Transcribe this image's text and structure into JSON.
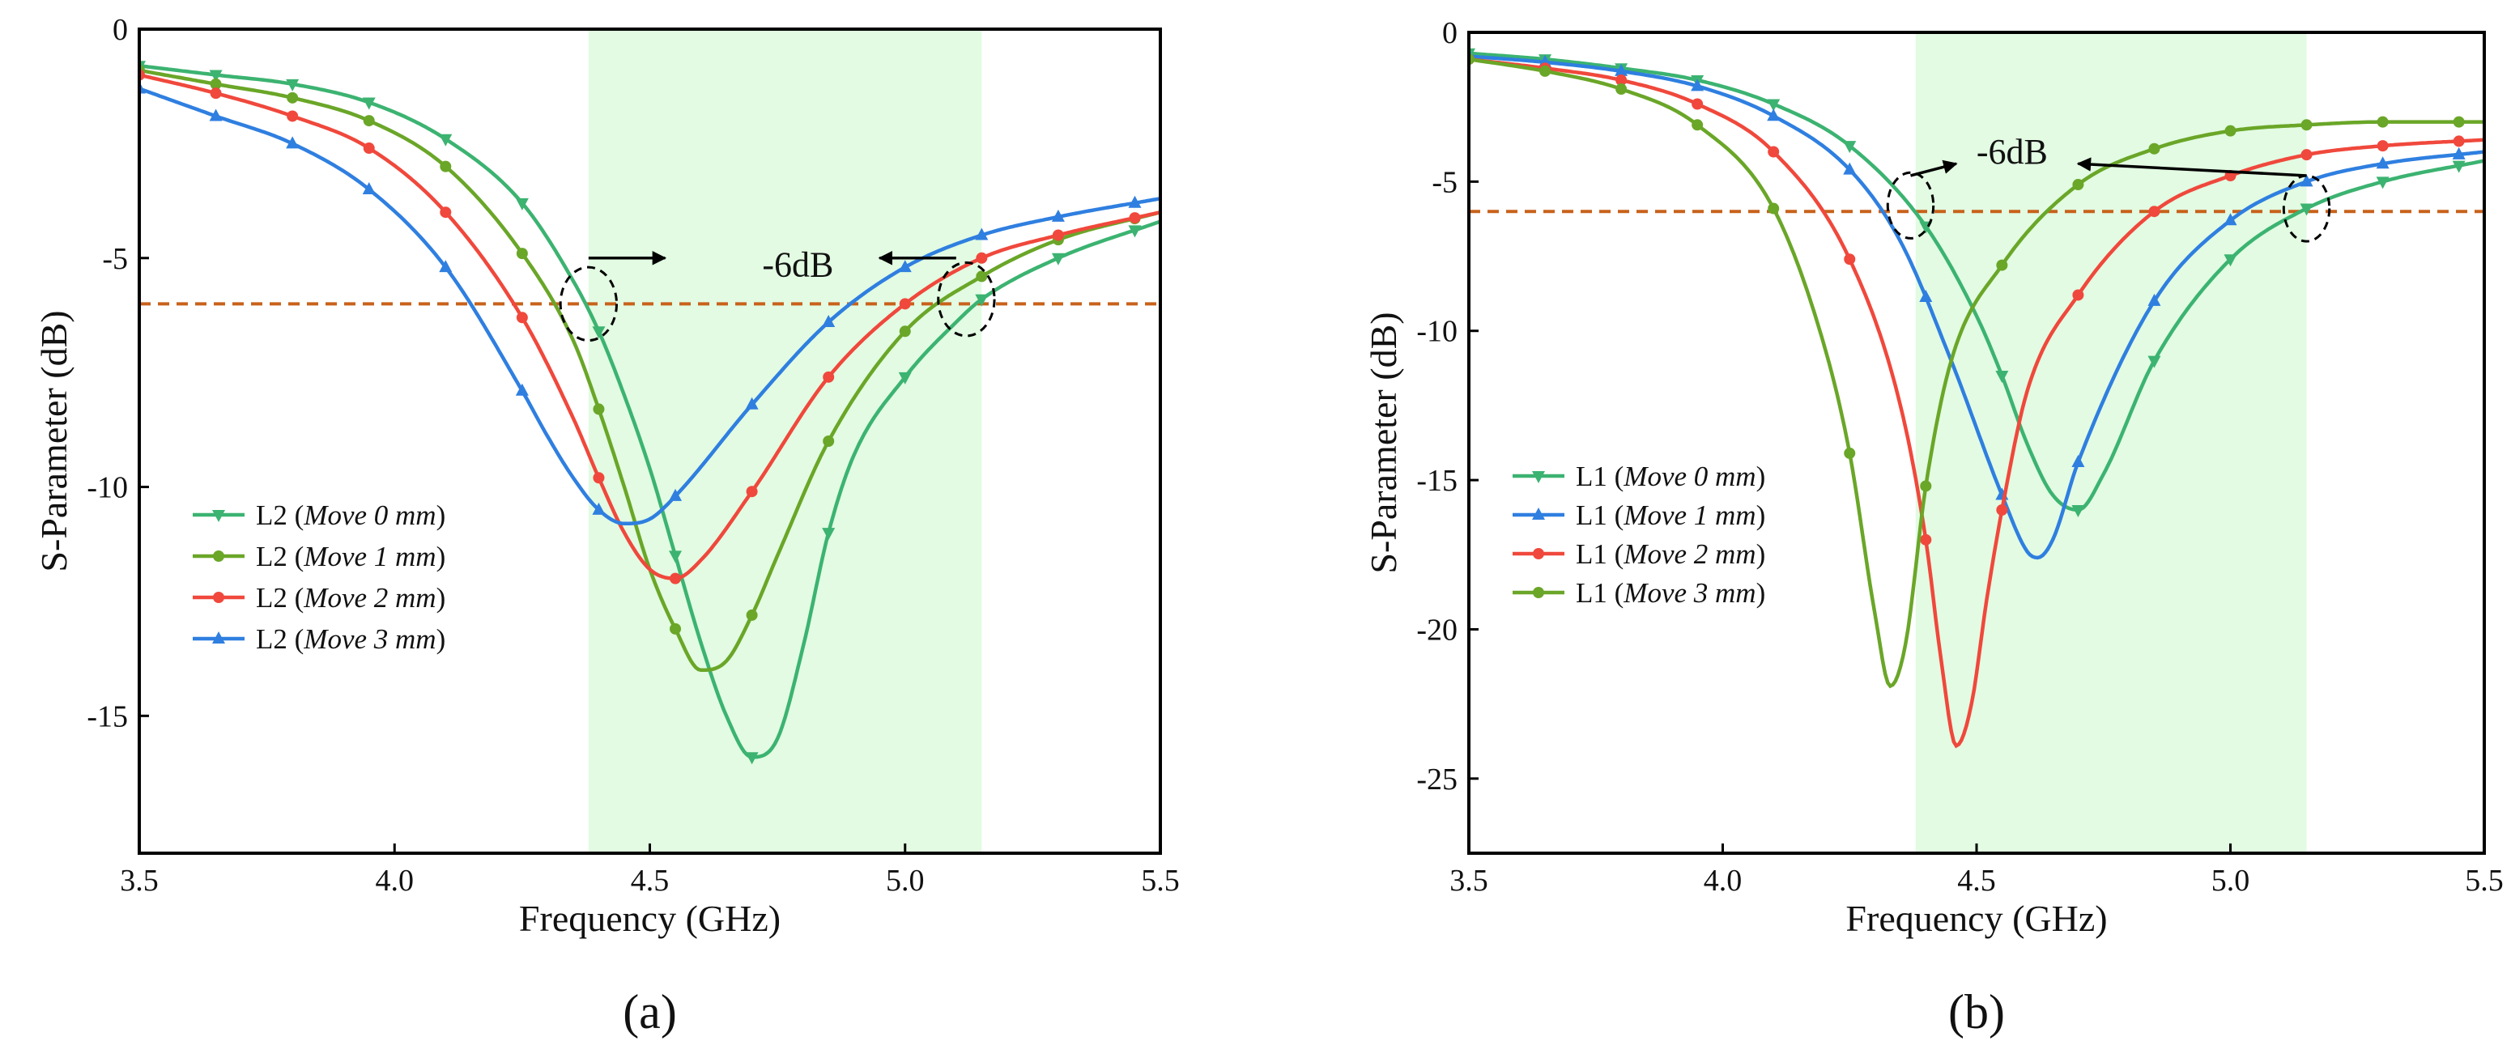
{
  "figure": {
    "panels": [
      "(a)",
      "(b)"
    ]
  },
  "colors": {
    "move0": "#3CB371",
    "move1": "#6AA628",
    "move2": "#F0483C",
    "move3": "#2F7FE0",
    "threshold": "#C8621B",
    "band": "#E2FBE2"
  },
  "chart_data": [
    {
      "id": "a",
      "panel_label": "(a)",
      "type": "line",
      "xlabel": "Frequency (GHz)",
      "ylabel": "S-Parameter (dB)",
      "xlim": [
        3.5,
        5.5
      ],
      "ylim": [
        -18,
        0
      ],
      "xticks": [
        3.5,
        4.0,
        4.5,
        5.0,
        5.5
      ],
      "xtick_labels": [
        "3.5",
        "4.0",
        "4.5",
        "5.0",
        "5.5"
      ],
      "yticks": [
        0,
        -5,
        -10,
        -15
      ],
      "ytick_labels": [
        "0",
        "-5",
        "-10",
        "-15"
      ],
      "shaded_band": [
        4.38,
        5.15
      ],
      "threshold": -6,
      "threshold_label": "-6dB",
      "legend_position": "center-left",
      "series": [
        {
          "name": "L2",
          "detail": "Move 0 mm",
          "color_key": "move0",
          "marker": "down-triangle",
          "x": [
            3.5,
            3.65,
            3.8,
            3.95,
            4.1,
            4.25,
            4.35,
            4.4,
            4.45,
            4.5,
            4.55,
            4.6,
            4.65,
            4.7,
            4.75,
            4.8,
            4.85,
            4.9,
            5.0,
            5.1,
            5.15,
            5.3,
            5.5
          ],
          "y": [
            -0.8,
            -1.0,
            -1.2,
            -1.6,
            -2.4,
            -3.8,
            -5.5,
            -6.6,
            -8.0,
            -9.6,
            -11.5,
            -13.4,
            -15.0,
            -15.9,
            -15.5,
            -13.5,
            -11.0,
            -9.3,
            -7.6,
            -6.4,
            -5.9,
            -5.0,
            -4.2
          ],
          "marker_x": [
            3.5,
            3.65,
            3.8,
            3.95,
            4.1,
            4.25,
            4.4,
            4.55,
            4.7,
            4.85,
            5.0,
            5.15,
            5.3,
            5.45
          ]
        },
        {
          "name": "L2",
          "detail": "Move 1 mm",
          "color_key": "move1",
          "marker": "circle",
          "x": [
            3.5,
            3.65,
            3.8,
            3.95,
            4.1,
            4.25,
            4.35,
            4.4,
            4.45,
            4.5,
            4.55,
            4.6,
            4.65,
            4.7,
            4.75,
            4.85,
            5.0,
            5.15,
            5.3,
            5.5
          ],
          "y": [
            -0.9,
            -1.2,
            -1.5,
            -2.0,
            -3.0,
            -4.9,
            -6.8,
            -8.3,
            -10.0,
            -11.8,
            -13.1,
            -14.0,
            -13.8,
            -12.8,
            -11.5,
            -9.0,
            -6.6,
            -5.4,
            -4.6,
            -4.0
          ],
          "marker_x": [
            3.5,
            3.65,
            3.8,
            3.95,
            4.1,
            4.25,
            4.4,
            4.55,
            4.7,
            4.85,
            5.0,
            5.15,
            5.3,
            5.45
          ]
        },
        {
          "name": "L2",
          "detail": "Move 2 mm",
          "color_key": "move2",
          "marker": "circle",
          "x": [
            3.5,
            3.65,
            3.8,
            3.95,
            4.1,
            4.25,
            4.35,
            4.4,
            4.45,
            4.5,
            4.55,
            4.6,
            4.7,
            4.85,
            5.0,
            5.15,
            5.3,
            5.5
          ],
          "y": [
            -1.0,
            -1.4,
            -1.9,
            -2.6,
            -4.0,
            -6.3,
            -8.5,
            -9.8,
            -11.0,
            -11.8,
            -12.0,
            -11.6,
            -10.1,
            -7.6,
            -6.0,
            -5.0,
            -4.5,
            -4.0
          ],
          "marker_x": [
            3.5,
            3.65,
            3.8,
            3.95,
            4.1,
            4.25,
            4.4,
            4.55,
            4.7,
            4.85,
            5.0,
            5.15,
            5.3,
            5.45
          ]
        },
        {
          "name": "L2",
          "detail": "Move 3 mm",
          "color_key": "move3",
          "marker": "up-triangle",
          "x": [
            3.5,
            3.65,
            3.8,
            3.95,
            4.1,
            4.25,
            4.3,
            4.35,
            4.4,
            4.45,
            4.5,
            4.55,
            4.7,
            4.85,
            5.0,
            5.15,
            5.3,
            5.5
          ],
          "y": [
            -1.3,
            -1.9,
            -2.5,
            -3.5,
            -5.2,
            -7.9,
            -8.9,
            -9.8,
            -10.5,
            -10.8,
            -10.7,
            -10.2,
            -8.2,
            -6.4,
            -5.2,
            -4.5,
            -4.1,
            -3.7
          ],
          "marker_x": [
            3.5,
            3.65,
            3.8,
            3.95,
            4.1,
            4.25,
            4.4,
            4.55,
            4.7,
            4.85,
            5.0,
            5.15,
            5.3,
            5.45
          ]
        }
      ],
      "annotations": [
        {
          "type": "ellipse",
          "cx": 4.38,
          "cy": -6.0,
          "rx": 0.055,
          "ry": 0.8
        },
        {
          "type": "ellipse",
          "cx": 5.12,
          "cy": -5.9,
          "rx": 0.055,
          "ry": 0.8
        },
        {
          "type": "arrow",
          "x1": 4.38,
          "y1": -5.0,
          "x2": 4.53,
          "y2": -5.0
        },
        {
          "type": "arrow",
          "x1": 5.1,
          "y1": -5.0,
          "x2": 4.95,
          "y2": -5.0
        },
        {
          "type": "label",
          "x": 4.79,
          "y": -5.4
        }
      ]
    },
    {
      "id": "b",
      "panel_label": "(b)",
      "type": "line",
      "xlabel": "Frequency (GHz)",
      "ylabel": "S-Parameter (dB)",
      "xlim": [
        3.5,
        5.5
      ],
      "ylim": [
        -27.5,
        0
      ],
      "xticks": [
        3.5,
        4.0,
        4.5,
        5.0,
        5.5
      ],
      "xtick_labels": [
        "3.5",
        "4.0",
        "4.5",
        "5.0",
        "5.5"
      ],
      "yticks": [
        0,
        -5,
        -10,
        -15,
        -20,
        -25
      ],
      "ytick_labels": [
        "0",
        "-5",
        "-10",
        "-15",
        "-20",
        "-25"
      ],
      "shaded_band": [
        4.38,
        5.15
      ],
      "threshold": -6,
      "threshold_label": "-6dB",
      "legend_position": "center-left",
      "series": [
        {
          "name": "L1",
          "detail": "Move 0 mm",
          "color_key": "move0",
          "marker": "down-triangle",
          "x": [
            3.5,
            3.65,
            3.8,
            3.95,
            4.1,
            4.25,
            4.4,
            4.5,
            4.55,
            4.6,
            4.65,
            4.7,
            4.75,
            4.85,
            5.0,
            5.15,
            5.3,
            5.5
          ],
          "y": [
            -0.7,
            -0.9,
            -1.2,
            -1.6,
            -2.4,
            -3.8,
            -6.5,
            -9.5,
            -11.5,
            -13.8,
            -15.5,
            -16.0,
            -14.8,
            -11.0,
            -7.6,
            -5.9,
            -5.0,
            -4.3
          ],
          "marker_x": [
            3.5,
            3.65,
            3.8,
            3.95,
            4.1,
            4.25,
            4.4,
            4.55,
            4.7,
            4.85,
            5.0,
            5.15,
            5.3,
            5.45
          ]
        },
        {
          "name": "L1",
          "detail": "Move 1 mm",
          "color_key": "move1",
          "marker": "up-triangle",
          "color_override": "move3",
          "x": [
            3.5,
            3.65,
            3.8,
            3.95,
            4.1,
            4.25,
            4.35,
            4.45,
            4.55,
            4.6,
            4.62,
            4.65,
            4.7,
            4.85,
            5.0,
            5.15,
            5.3,
            5.5
          ],
          "y": [
            -0.8,
            -1.0,
            -1.3,
            -1.8,
            -2.8,
            -4.6,
            -7.0,
            -11.0,
            -15.5,
            -17.4,
            -17.6,
            -17.0,
            -14.4,
            -9.0,
            -6.3,
            -5.0,
            -4.4,
            -4.0
          ],
          "marker_x": [
            3.5,
            3.65,
            3.8,
            3.95,
            4.1,
            4.25,
            4.4,
            4.55,
            4.7,
            4.85,
            5.0,
            5.15,
            5.3,
            5.45
          ]
        },
        {
          "name": "L1",
          "detail": "Move 2 mm",
          "color_key": "move2",
          "marker": "circle",
          "x": [
            3.5,
            3.65,
            3.8,
            3.95,
            4.1,
            4.25,
            4.35,
            4.4,
            4.43,
            4.46,
            4.49,
            4.52,
            4.55,
            4.6,
            4.7,
            4.85,
            5.0,
            5.15,
            5.3,
            5.5
          ],
          "y": [
            -0.9,
            -1.2,
            -1.6,
            -2.4,
            -4.0,
            -7.6,
            -12.5,
            -17.0,
            -21.0,
            -23.9,
            -22.5,
            -19.0,
            -16.0,
            -12.0,
            -8.8,
            -6.0,
            -4.8,
            -4.1,
            -3.8,
            -3.6
          ],
          "marker_x": [
            3.5,
            3.65,
            3.8,
            3.95,
            4.1,
            4.25,
            4.4,
            4.55,
            4.7,
            4.85,
            5.0,
            5.15,
            5.3,
            5.45
          ]
        },
        {
          "name": "L1",
          "detail": "Move 3 mm",
          "color_key": "move3",
          "marker": "circle",
          "color_override": "move1",
          "x": [
            3.5,
            3.65,
            3.8,
            3.95,
            4.1,
            4.2,
            4.25,
            4.3,
            4.33,
            4.36,
            4.4,
            4.45,
            4.55,
            4.7,
            4.85,
            5.0,
            5.15,
            5.3,
            5.5
          ],
          "y": [
            -0.9,
            -1.3,
            -1.9,
            -3.1,
            -5.9,
            -10.5,
            -14.1,
            -19.5,
            -21.9,
            -20.5,
            -15.2,
            -11.0,
            -7.8,
            -5.1,
            -3.9,
            -3.3,
            -3.1,
            -3.0,
            -3.0
          ],
          "marker_x": [
            3.5,
            3.65,
            3.8,
            3.95,
            4.1,
            4.25,
            4.4,
            4.55,
            4.7,
            4.85,
            5.0,
            5.15,
            5.3,
            5.45
          ]
        }
      ],
      "annotations": [
        {
          "type": "ellipse",
          "cx": 4.37,
          "cy": -5.8,
          "rx": 0.045,
          "ry": 1.1
        },
        {
          "type": "ellipse",
          "cx": 5.15,
          "cy": -5.9,
          "rx": 0.045,
          "ry": 1.1
        },
        {
          "type": "arrow",
          "x1": 4.37,
          "y1": -4.8,
          "x2": 4.46,
          "y2": -4.4
        },
        {
          "type": "arrow",
          "x1": 5.15,
          "y1": -4.8,
          "x2": 4.7,
          "y2": -4.4
        },
        {
          "type": "label",
          "x": 4.57,
          "y": -4.4
        }
      ]
    }
  ]
}
